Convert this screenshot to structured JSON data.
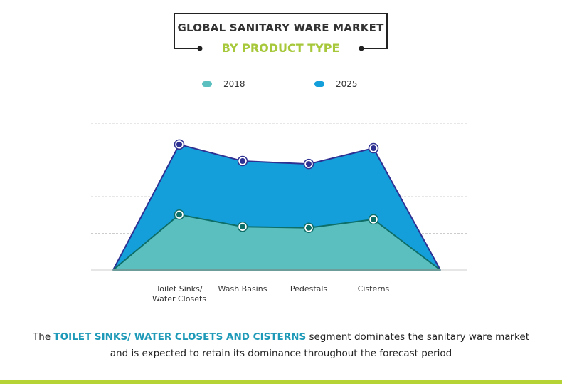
{
  "title": {
    "line1": "GLOBAL SANITARY WARE MARKET",
    "line2": "BY PRODUCT TYPE"
  },
  "colors": {
    "title_accent": "#a6c83a",
    "highlight": "#1e9ab8",
    "footer_bar": "#b5d334"
  },
  "chart_data": {
    "type": "area",
    "title": "GLOBAL SANITARY WARE MARKET BY PRODUCT TYPE",
    "categories": [
      "Toilet Sinks/ Water Closets",
      "Wash Basins",
      "Pedestals",
      "Cisterns"
    ],
    "category_lines": [
      [
        "Toilet Sinks/",
        "Water Closets"
      ],
      [
        "Wash Basins"
      ],
      [
        "Pedestals"
      ],
      [
        "Cisterns"
      ]
    ],
    "series": [
      {
        "name": "2018",
        "values": [
          1.51,
          1.18,
          1.15,
          1.38
        ],
        "color": "#5bbfbf",
        "line": "#0e6e68"
      },
      {
        "name": "2025",
        "values": [
          3.42,
          2.97,
          2.89,
          3.32
        ],
        "color": "#149fdb",
        "line": "#2e3192"
      }
    ],
    "ylim": [
      0,
      4
    ],
    "y_axis_labels": "none",
    "grid": true,
    "legend": "top"
  },
  "footer": {
    "prefix": "The ",
    "highlight": "TOILET SINKS/ WATER CLOSETS AND CISTERNS",
    "suffix": " segment dominates the sanitary ware market",
    "line2": "and is expected to retain its dominance throughout the forecast period"
  }
}
